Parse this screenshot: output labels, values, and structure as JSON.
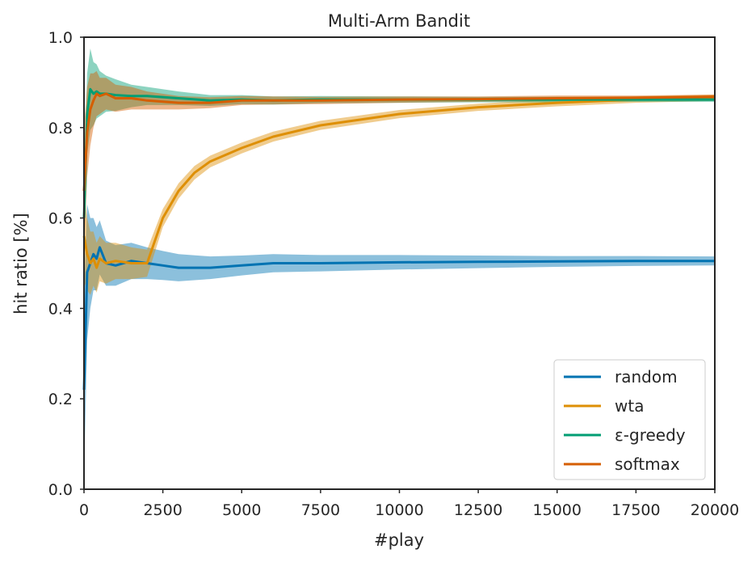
{
  "chart_data": {
    "type": "line",
    "title": "Multi-Arm Bandit",
    "xlabel": "#play",
    "ylabel": "hit ratio [%]",
    "xlim": [
      0,
      20000
    ],
    "ylim": [
      0.0,
      1.0
    ],
    "xticks": [
      0,
      2500,
      5000,
      7500,
      10000,
      12500,
      15000,
      17500,
      20000
    ],
    "yticks": [
      0.0,
      0.2,
      0.4,
      0.6,
      0.8,
      1.0
    ],
    "xtick_labels": [
      "0",
      "2500",
      "5000",
      "7500",
      "10000",
      "12500",
      "15000",
      "17500",
      "20000"
    ],
    "ytick_labels": [
      "0.0",
      "0.2",
      "0.4",
      "0.6",
      "0.8",
      "1.0"
    ],
    "grid": false,
    "legend_position": "bottom-right",
    "series": [
      {
        "name": "random",
        "color": "#0173b2",
        "x": [
          0,
          100,
          200,
          300,
          400,
          500,
          700,
          1000,
          1500,
          2000,
          2500,
          3000,
          4000,
          5000,
          6000,
          7500,
          10000,
          12500,
          15000,
          17500,
          20000
        ],
        "y": [
          0.22,
          0.48,
          0.5,
          0.52,
          0.51,
          0.535,
          0.5,
          0.495,
          0.505,
          0.5,
          0.495,
          0.49,
          0.49,
          0.495,
          0.5,
          0.5,
          0.502,
          0.503,
          0.504,
          0.505,
          0.505
        ],
        "band": [
          0.2,
          0.15,
          0.1,
          0.08,
          0.07,
          0.06,
          0.05,
          0.045,
          0.04,
          0.035,
          0.032,
          0.03,
          0.025,
          0.022,
          0.02,
          0.018,
          0.016,
          0.014,
          0.012,
          0.011,
          0.01
        ]
      },
      {
        "name": "wta",
        "color": "#de8f05",
        "x": [
          0,
          100,
          200,
          300,
          400,
          500,
          700,
          1000,
          1500,
          2000,
          2500,
          3000,
          3500,
          4000,
          5000,
          6000,
          7500,
          10000,
          12500,
          15000,
          17500,
          20000
        ],
        "y": [
          0.56,
          0.52,
          0.5,
          0.51,
          0.49,
          0.51,
          0.5,
          0.505,
          0.5,
          0.5,
          0.6,
          0.66,
          0.7,
          0.725,
          0.755,
          0.78,
          0.805,
          0.83,
          0.845,
          0.855,
          0.862,
          0.866
        ],
        "band": [
          0.1,
          0.08,
          0.07,
          0.06,
          0.055,
          0.05,
          0.045,
          0.04,
          0.035,
          0.03,
          0.02,
          0.017,
          0.015,
          0.013,
          0.012,
          0.011,
          0.01,
          0.009,
          0.008,
          0.008,
          0.007,
          0.007
        ]
      },
      {
        "name": "ε-greedy",
        "color": "#029e73",
        "x": [
          0,
          100,
          200,
          300,
          400,
          500,
          700,
          1000,
          1500,
          2000,
          3000,
          4000,
          5000,
          6000,
          7500,
          10000,
          12500,
          15000,
          17500,
          20000
        ],
        "y": [
          0.6,
          0.83,
          0.885,
          0.875,
          0.88,
          0.875,
          0.875,
          0.872,
          0.87,
          0.87,
          0.865,
          0.86,
          0.862,
          0.86,
          0.862,
          0.862,
          0.862,
          0.862,
          0.862,
          0.862
        ],
        "band": [
          0.06,
          0.09,
          0.09,
          0.07,
          0.06,
          0.05,
          0.04,
          0.035,
          0.025,
          0.02,
          0.015,
          0.012,
          0.01,
          0.009,
          0.008,
          0.007,
          0.006,
          0.006,
          0.005,
          0.005
        ]
      },
      {
        "name": "softmax",
        "color": "#d55e00",
        "x": [
          0,
          100,
          200,
          300,
          400,
          500,
          700,
          1000,
          1500,
          2000,
          3000,
          4000,
          5000,
          6000,
          7500,
          10000,
          12500,
          15000,
          17500,
          20000
        ],
        "y": [
          0.66,
          0.79,
          0.84,
          0.86,
          0.875,
          0.87,
          0.875,
          0.865,
          0.865,
          0.86,
          0.855,
          0.855,
          0.86,
          0.86,
          0.86,
          0.862,
          0.863,
          0.865,
          0.866,
          0.868
        ],
        "band": [
          0.14,
          0.1,
          0.08,
          0.06,
          0.05,
          0.04,
          0.035,
          0.03,
          0.025,
          0.02,
          0.015,
          0.012,
          0.01,
          0.009,
          0.008,
          0.007,
          0.006,
          0.006,
          0.005,
          0.005
        ]
      }
    ]
  }
}
